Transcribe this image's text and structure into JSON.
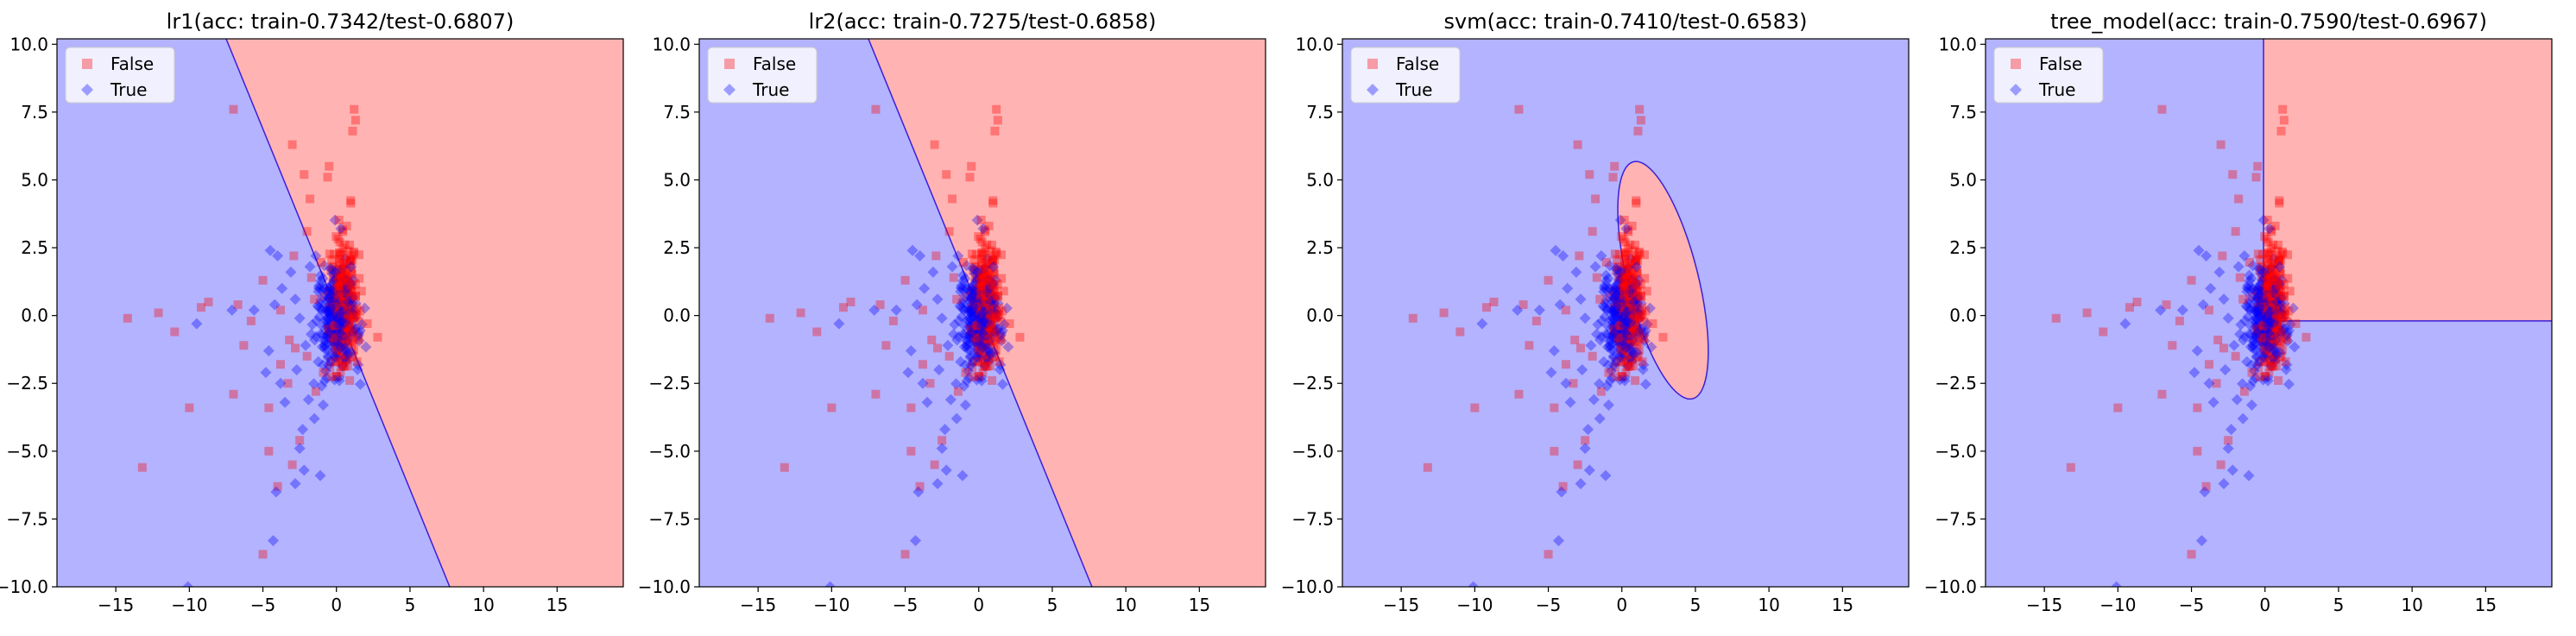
{
  "chart_data": [
    {
      "type": "scatter",
      "title": "lr1(acc: train-0.7342/test-0.6807)",
      "xlim": [
        -19,
        19.5
      ],
      "ylim": [
        -10,
        10.2
      ],
      "xticks": [
        -15,
        -10,
        -5,
        0,
        5,
        10,
        15
      ],
      "xtick_labels": [
        "−15",
        "−10",
        "−5",
        "0",
        "5",
        "10",
        "15"
      ],
      "yticks": [
        -10,
        -7.5,
        -5,
        -2.5,
        0,
        2.5,
        5,
        7.5,
        10
      ],
      "ytick_labels": [
        "−10.0",
        "−7.5",
        "−5.0",
        "−2.5",
        "0.0",
        "2.5",
        "5.0",
        "7.5",
        "10.0"
      ],
      "boundary": {
        "kind": "linear",
        "x_at_top": -7.5,
        "x_at_bottom": 7.7,
        "positive_side": "right"
      },
      "legend": [
        {
          "label": "False",
          "marker": "square",
          "color": "#ff0000"
        },
        {
          "label": "True",
          "marker": "diamond",
          "color": "#0000ff"
        }
      ]
    },
    {
      "type": "scatter",
      "title": "lr2(acc: train-0.7275/test-0.6858)",
      "xlim": [
        -19,
        19.5
      ],
      "ylim": [
        -10,
        10.2
      ],
      "xticks": [
        -15,
        -10,
        -5,
        0,
        5,
        10,
        15
      ],
      "xtick_labels": [
        "−15",
        "−10",
        "−5",
        "0",
        "5",
        "10",
        "15"
      ],
      "yticks": [
        -10,
        -7.5,
        -5,
        -2.5,
        0,
        2.5,
        5,
        7.5,
        10
      ],
      "ytick_labels": [
        "−10.0",
        "−7.5",
        "−5.0",
        "−2.5",
        "0.0",
        "2.5",
        "5.0",
        "7.5",
        "10.0"
      ],
      "boundary": {
        "kind": "linear",
        "x_at_top": -7.5,
        "x_at_bottom": 7.7,
        "positive_side": "right"
      },
      "legend": [
        {
          "label": "False",
          "marker": "square",
          "color": "#ff0000"
        },
        {
          "label": "True",
          "marker": "diamond",
          "color": "#0000ff"
        }
      ]
    },
    {
      "type": "scatter",
      "title": "svm(acc: train-0.7410/test-0.6583)",
      "xlim": [
        -19,
        19.5
      ],
      "ylim": [
        -10,
        10.2
      ],
      "xticks": [
        -15,
        -10,
        -5,
        0,
        5,
        10,
        15
      ],
      "xtick_labels": [
        "−15",
        "−10",
        "−5",
        "0",
        "5",
        "10",
        "15"
      ],
      "yticks": [
        -10,
        -7.5,
        -5,
        -2.5,
        0,
        2.5,
        5,
        7.5,
        10
      ],
      "ytick_labels": [
        "−10.0",
        "−7.5",
        "−5.0",
        "−2.5",
        "0.0",
        "2.5",
        "5.0",
        "7.5",
        "10.0"
      ],
      "boundary": {
        "kind": "ellipse",
        "cx": 2.8,
        "cy": 1.3,
        "rx": 2.4,
        "ry": 4.5,
        "rotation_deg": -14
      },
      "legend": [
        {
          "label": "False",
          "marker": "square",
          "color": "#ff0000"
        },
        {
          "label": "True",
          "marker": "diamond",
          "color": "#0000ff"
        }
      ]
    },
    {
      "type": "scatter",
      "title": "tree_model(acc: train-0.7590/test-0.6967)",
      "xlim": [
        -19,
        19.5
      ],
      "ylim": [
        -10,
        10.2
      ],
      "xticks": [
        -15,
        -10,
        -5,
        0,
        5,
        10,
        15
      ],
      "xtick_labels": [
        "−15",
        "−10",
        "−5",
        "0",
        "5",
        "10",
        "15"
      ],
      "yticks": [
        -10,
        -7.5,
        -5,
        -2.5,
        0,
        2.5,
        5,
        7.5,
        10
      ],
      "ytick_labels": [
        "−10.0",
        "−7.5",
        "−5.0",
        "−2.5",
        "0.0",
        "2.5",
        "5.0",
        "7.5",
        "10.0"
      ],
      "boundary": {
        "kind": "rect",
        "x_min": -0.1,
        "y_min": -0.2
      },
      "legend": [
        {
          "label": "False",
          "marker": "square",
          "color": "#ff0000"
        },
        {
          "label": "True",
          "marker": "diamond",
          "color": "#0000ff"
        }
      ]
    }
  ],
  "colors": {
    "positive_region": "#ffb3b3",
    "negative_region": "#b3b3ff",
    "boundary_line": "#3b1fd8",
    "false_marker": "#ff0000",
    "true_marker": "#0000ff"
  },
  "points": {
    "false": [
      [
        1.2,
        7.6
      ],
      [
        1.3,
        7.2
      ],
      [
        1.1,
        6.8
      ],
      [
        -7,
        7.6
      ],
      [
        -0.5,
        5.5
      ],
      [
        -0.6,
        5.1
      ],
      [
        -3,
        6.3
      ],
      [
        -2.2,
        5.2
      ],
      [
        -1.8,
        4.3
      ],
      [
        -14.2,
        -0.1
      ],
      [
        -12.1,
        0.1
      ],
      [
        -11,
        -0.6
      ],
      [
        -9.2,
        0.3
      ],
      [
        -6.7,
        0.4
      ],
      [
        -6.3,
        -1.1
      ],
      [
        -7,
        -2.9
      ],
      [
        -5.8,
        -0.2
      ],
      [
        -10,
        -3.4
      ],
      [
        -13.2,
        -5.6
      ],
      [
        -4.6,
        -3.4
      ],
      [
        -4.6,
        -5
      ],
      [
        -4,
        -6.3
      ],
      [
        -5,
        -8.8
      ],
      [
        -3.3,
        -2.5
      ],
      [
        -3,
        -5.5
      ],
      [
        -2.5,
        -4.6
      ],
      [
        -3.8,
        -1.8
      ],
      [
        -3.2,
        -0.9
      ],
      [
        -2.8,
        -1.2
      ],
      [
        -2.9,
        2.2
      ],
      [
        -2,
        3.1
      ],
      [
        -1.7,
        1.4
      ],
      [
        2.1,
        -0.3
      ],
      [
        2.8,
        -0.8
      ],
      [
        1.7,
        0.9
      ],
      [
        0.7,
        3.3
      ],
      [
        0.9,
        2.6
      ],
      [
        1.4,
        -1.7
      ],
      [
        -2,
        -1.5
      ],
      [
        -1.4,
        -2.8
      ],
      [
        -0.9,
        -2.1
      ],
      [
        -1.5,
        0.6
      ],
      [
        -3.8,
        0.2
      ],
      [
        -5,
        1.3
      ],
      [
        -8.7,
        0.5
      ]
    ],
    "true": [
      [
        -10.1,
        -10
      ],
      [
        -4.3,
        -8.3
      ],
      [
        -4.1,
        -6.5
      ],
      [
        -2.8,
        -6.2
      ],
      [
        -1.1,
        -5.9
      ],
      [
        -2.2,
        -5.7
      ],
      [
        -2.5,
        -4.9
      ],
      [
        -2.3,
        -4.2
      ],
      [
        -3.5,
        -3.2
      ],
      [
        -1.9,
        -3.1
      ],
      [
        -1.5,
        -3.8
      ],
      [
        -0.9,
        -3.3
      ],
      [
        -4.6,
        -1.3
      ],
      [
        -4.8,
        -2.1
      ],
      [
        -3.8,
        -2.5
      ],
      [
        -4.2,
        0.4
      ],
      [
        -3.1,
        1.6
      ],
      [
        -4.5,
        2.4
      ],
      [
        -4,
        2.2
      ],
      [
        -3.7,
        1
      ],
      [
        -2.8,
        0.6
      ],
      [
        -2.5,
        -0.1
      ],
      [
        -2.1,
        -1.1
      ],
      [
        -2.7,
        -2
      ],
      [
        -1.8,
        1.8
      ],
      [
        -1.2,
        0.3
      ],
      [
        -1.4,
        2.2
      ],
      [
        -7.1,
        0.2
      ],
      [
        -9.5,
        -0.3
      ],
      [
        0.3,
        3.2
      ],
      [
        1,
        1.8
      ],
      [
        -0.4,
        -1.7
      ],
      [
        -1,
        -2.6
      ],
      [
        0.6,
        -1.2
      ],
      [
        0.2,
        -2.4
      ],
      [
        -0.6,
        0.9
      ],
      [
        0.8,
        0.5
      ],
      [
        -5.6,
        0.2
      ]
    ]
  }
}
